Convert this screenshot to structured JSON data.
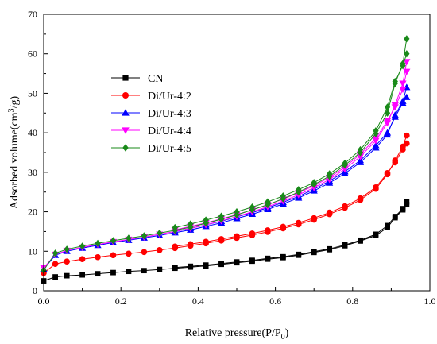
{
  "chart_data": {
    "type": "line",
    "title": "",
    "xlabel": "Relative pressure(P/P",
    "xlabel_sub": "0",
    "xlabel_end": ")",
    "ylabel": "Adsorbed volume(cm",
    "ylabel_sup": "3",
    "ylabel_end": "/g)",
    "xlim": [
      0,
      1.0
    ],
    "ylim": [
      0,
      70
    ],
    "xticks": [
      0.0,
      0.2,
      0.4,
      0.6,
      0.8,
      1.0
    ],
    "xtick_labels": [
      "0.0",
      "0.2",
      "0.4",
      "0.6",
      "0.8",
      "1.0"
    ],
    "yticks": [
      0,
      10,
      20,
      30,
      40,
      50,
      60,
      70
    ],
    "ytick_labels": [
      "0",
      "10",
      "20",
      "30",
      "40",
      "50",
      "60",
      "70"
    ],
    "grid": false,
    "legend": "center-left",
    "series": [
      {
        "name": "CN",
        "color": "#000000",
        "marker": "square",
        "adsorption": [
          [
            0.0,
            2.5
          ],
          [
            0.03,
            3.5
          ],
          [
            0.06,
            3.8
          ],
          [
            0.1,
            4.0
          ],
          [
            0.14,
            4.3
          ],
          [
            0.18,
            4.6
          ],
          [
            0.22,
            4.9
          ],
          [
            0.26,
            5.1
          ],
          [
            0.3,
            5.4
          ],
          [
            0.34,
            5.7
          ],
          [
            0.38,
            6.0
          ],
          [
            0.42,
            6.3
          ],
          [
            0.46,
            6.7
          ],
          [
            0.5,
            7.1
          ],
          [
            0.54,
            7.5
          ],
          [
            0.58,
            8.0
          ],
          [
            0.62,
            8.4
          ],
          [
            0.66,
            9.0
          ],
          [
            0.7,
            9.7
          ],
          [
            0.74,
            10.4
          ],
          [
            0.78,
            11.4
          ],
          [
            0.82,
            12.6
          ],
          [
            0.86,
            14.0
          ],
          [
            0.89,
            16.0
          ],
          [
            0.91,
            18.5
          ],
          [
            0.93,
            20.5
          ],
          [
            0.94,
            22.5
          ]
        ],
        "desorption": [
          [
            0.94,
            21.8
          ],
          [
            0.93,
            20.8
          ],
          [
            0.91,
            18.8
          ],
          [
            0.89,
            16.5
          ],
          [
            0.86,
            14.3
          ],
          [
            0.82,
            12.8
          ],
          [
            0.78,
            11.6
          ],
          [
            0.74,
            10.6
          ],
          [
            0.7,
            9.9
          ],
          [
            0.66,
            9.2
          ],
          [
            0.62,
            8.6
          ],
          [
            0.58,
            8.2
          ],
          [
            0.54,
            7.7
          ],
          [
            0.5,
            7.3
          ],
          [
            0.46,
            6.9
          ],
          [
            0.42,
            6.5
          ],
          [
            0.38,
            6.2
          ],
          [
            0.34,
            5.9
          ]
        ]
      },
      {
        "name": "Di/Ur-4:2",
        "color": "#ff0000",
        "marker": "circle",
        "adsorption": [
          [
            0.0,
            4.5
          ],
          [
            0.03,
            6.8
          ],
          [
            0.06,
            7.4
          ],
          [
            0.1,
            8.0
          ],
          [
            0.14,
            8.5
          ],
          [
            0.18,
            9.0
          ],
          [
            0.22,
            9.4
          ],
          [
            0.26,
            9.8
          ],
          [
            0.3,
            10.3
          ],
          [
            0.34,
            10.8
          ],
          [
            0.38,
            11.4
          ],
          [
            0.42,
            12.0
          ],
          [
            0.46,
            12.7
          ],
          [
            0.5,
            13.4
          ],
          [
            0.54,
            14.1
          ],
          [
            0.58,
            14.9
          ],
          [
            0.62,
            15.8
          ],
          [
            0.66,
            16.8
          ],
          [
            0.7,
            18.0
          ],
          [
            0.74,
            19.4
          ],
          [
            0.78,
            21.0
          ],
          [
            0.82,
            23.0
          ],
          [
            0.86,
            25.8
          ],
          [
            0.89,
            29.5
          ],
          [
            0.91,
            33.0
          ],
          [
            0.93,
            36.5
          ],
          [
            0.94,
            39.3
          ]
        ],
        "desorption": [
          [
            0.94,
            37.3
          ],
          [
            0.93,
            35.8
          ],
          [
            0.91,
            32.5
          ],
          [
            0.89,
            29.8
          ],
          [
            0.86,
            26.2
          ],
          [
            0.82,
            23.4
          ],
          [
            0.78,
            21.4
          ],
          [
            0.74,
            19.8
          ],
          [
            0.7,
            18.4
          ],
          [
            0.66,
            17.2
          ],
          [
            0.62,
            16.2
          ],
          [
            0.58,
            15.3
          ],
          [
            0.54,
            14.5
          ],
          [
            0.5,
            13.8
          ],
          [
            0.46,
            13.1
          ],
          [
            0.42,
            12.4
          ],
          [
            0.38,
            11.8
          ],
          [
            0.34,
            11.2
          ]
        ]
      },
      {
        "name": "Di/Ur-4:3",
        "color": "#0000ff",
        "marker": "triangle-up",
        "adsorption": [
          [
            0.0,
            5.5
          ],
          [
            0.03,
            9.0
          ],
          [
            0.06,
            10.0
          ],
          [
            0.1,
            10.8
          ],
          [
            0.14,
            11.5
          ],
          [
            0.18,
            12.2
          ],
          [
            0.22,
            12.8
          ],
          [
            0.26,
            13.4
          ],
          [
            0.3,
            14.0
          ],
          [
            0.34,
            14.7
          ],
          [
            0.38,
            15.4
          ],
          [
            0.42,
            16.3
          ],
          [
            0.46,
            17.2
          ],
          [
            0.5,
            18.3
          ],
          [
            0.54,
            19.4
          ],
          [
            0.58,
            20.6
          ],
          [
            0.62,
            22.0
          ],
          [
            0.66,
            23.5
          ],
          [
            0.7,
            25.3
          ],
          [
            0.74,
            27.3
          ],
          [
            0.78,
            29.7
          ],
          [
            0.82,
            32.5
          ],
          [
            0.86,
            36.2
          ],
          [
            0.89,
            39.5
          ],
          [
            0.91,
            44.5
          ],
          [
            0.93,
            48.0
          ],
          [
            0.94,
            51.5
          ]
        ],
        "desorption": [
          [
            0.94,
            49.0
          ],
          [
            0.93,
            47.5
          ],
          [
            0.91,
            44.0
          ],
          [
            0.89,
            40.0
          ],
          [
            0.86,
            36.8
          ],
          [
            0.82,
            33.0
          ],
          [
            0.78,
            30.2
          ],
          [
            0.74,
            27.8
          ],
          [
            0.7,
            25.7
          ],
          [
            0.66,
            23.9
          ],
          [
            0.62,
            22.4
          ],
          [
            0.58,
            21.0
          ],
          [
            0.54,
            19.8
          ],
          [
            0.5,
            18.7
          ],
          [
            0.46,
            17.6
          ],
          [
            0.42,
            16.7
          ],
          [
            0.38,
            15.8
          ],
          [
            0.34,
            15.0
          ]
        ]
      },
      {
        "name": "Di/Ur-4:4",
        "color": "#ff00ff",
        "marker": "triangle-down",
        "adsorption": [
          [
            0.0,
            5.8
          ],
          [
            0.03,
            9.2
          ],
          [
            0.06,
            10.2
          ],
          [
            0.1,
            11.0
          ],
          [
            0.14,
            11.7
          ],
          [
            0.18,
            12.4
          ],
          [
            0.22,
            13.0
          ],
          [
            0.26,
            13.6
          ],
          [
            0.3,
            14.3
          ],
          [
            0.34,
            15.0
          ],
          [
            0.38,
            15.8
          ],
          [
            0.42,
            16.7
          ],
          [
            0.46,
            17.7
          ],
          [
            0.5,
            18.8
          ],
          [
            0.54,
            20.0
          ],
          [
            0.58,
            21.3
          ],
          [
            0.62,
            22.7
          ],
          [
            0.66,
            24.3
          ],
          [
            0.7,
            26.1
          ],
          [
            0.74,
            28.2
          ],
          [
            0.78,
            30.8
          ],
          [
            0.82,
            34.0
          ],
          [
            0.86,
            38.0
          ],
          [
            0.89,
            42.5
          ],
          [
            0.91,
            47.0
          ],
          [
            0.93,
            52.5
          ],
          [
            0.94,
            58.0
          ]
        ],
        "desorption": [
          [
            0.94,
            55.5
          ],
          [
            0.93,
            51.0
          ],
          [
            0.91,
            46.5
          ],
          [
            0.89,
            43.0
          ],
          [
            0.86,
            38.6
          ],
          [
            0.82,
            34.6
          ],
          [
            0.78,
            31.3
          ],
          [
            0.74,
            28.7
          ],
          [
            0.7,
            26.6
          ],
          [
            0.66,
            24.8
          ],
          [
            0.62,
            23.2
          ],
          [
            0.58,
            21.8
          ],
          [
            0.54,
            20.5
          ],
          [
            0.5,
            19.3
          ],
          [
            0.46,
            18.2
          ],
          [
            0.42,
            17.2
          ],
          [
            0.38,
            16.3
          ],
          [
            0.34,
            15.4
          ]
        ]
      },
      {
        "name": "Di/Ur-4:5",
        "color": "#1a8a1a",
        "marker": "diamond",
        "adsorption": [
          [
            0.0,
            5.2
          ],
          [
            0.03,
            9.5
          ],
          [
            0.06,
            10.5
          ],
          [
            0.1,
            11.3
          ],
          [
            0.14,
            12.0
          ],
          [
            0.18,
            12.7
          ],
          [
            0.22,
            13.3
          ],
          [
            0.26,
            13.9
          ],
          [
            0.3,
            14.6
          ],
          [
            0.34,
            15.3
          ],
          [
            0.38,
            16.1
          ],
          [
            0.42,
            17.1
          ],
          [
            0.46,
            18.1
          ],
          [
            0.5,
            19.2
          ],
          [
            0.54,
            20.5
          ],
          [
            0.58,
            21.8
          ],
          [
            0.62,
            23.3
          ],
          [
            0.66,
            25.0
          ],
          [
            0.7,
            26.9
          ],
          [
            0.74,
            29.0
          ],
          [
            0.78,
            31.8
          ],
          [
            0.82,
            35.0
          ],
          [
            0.86,
            39.8
          ],
          [
            0.89,
            45.0
          ],
          [
            0.91,
            52.5
          ],
          [
            0.93,
            57.5
          ],
          [
            0.94,
            63.8
          ]
        ],
        "desorption": [
          [
            0.94,
            60.0
          ],
          [
            0.93,
            57.0
          ],
          [
            0.91,
            53.0
          ],
          [
            0.89,
            46.5
          ],
          [
            0.86,
            40.5
          ],
          [
            0.82,
            35.7
          ],
          [
            0.78,
            32.3
          ],
          [
            0.74,
            29.6
          ],
          [
            0.7,
            27.4
          ],
          [
            0.66,
            25.6
          ],
          [
            0.62,
            24.0
          ],
          [
            0.58,
            22.5
          ],
          [
            0.54,
            21.2
          ],
          [
            0.5,
            20.0
          ],
          [
            0.46,
            18.9
          ],
          [
            0.42,
            17.9
          ],
          [
            0.38,
            16.9
          ],
          [
            0.34,
            16.0
          ]
        ]
      }
    ]
  }
}
